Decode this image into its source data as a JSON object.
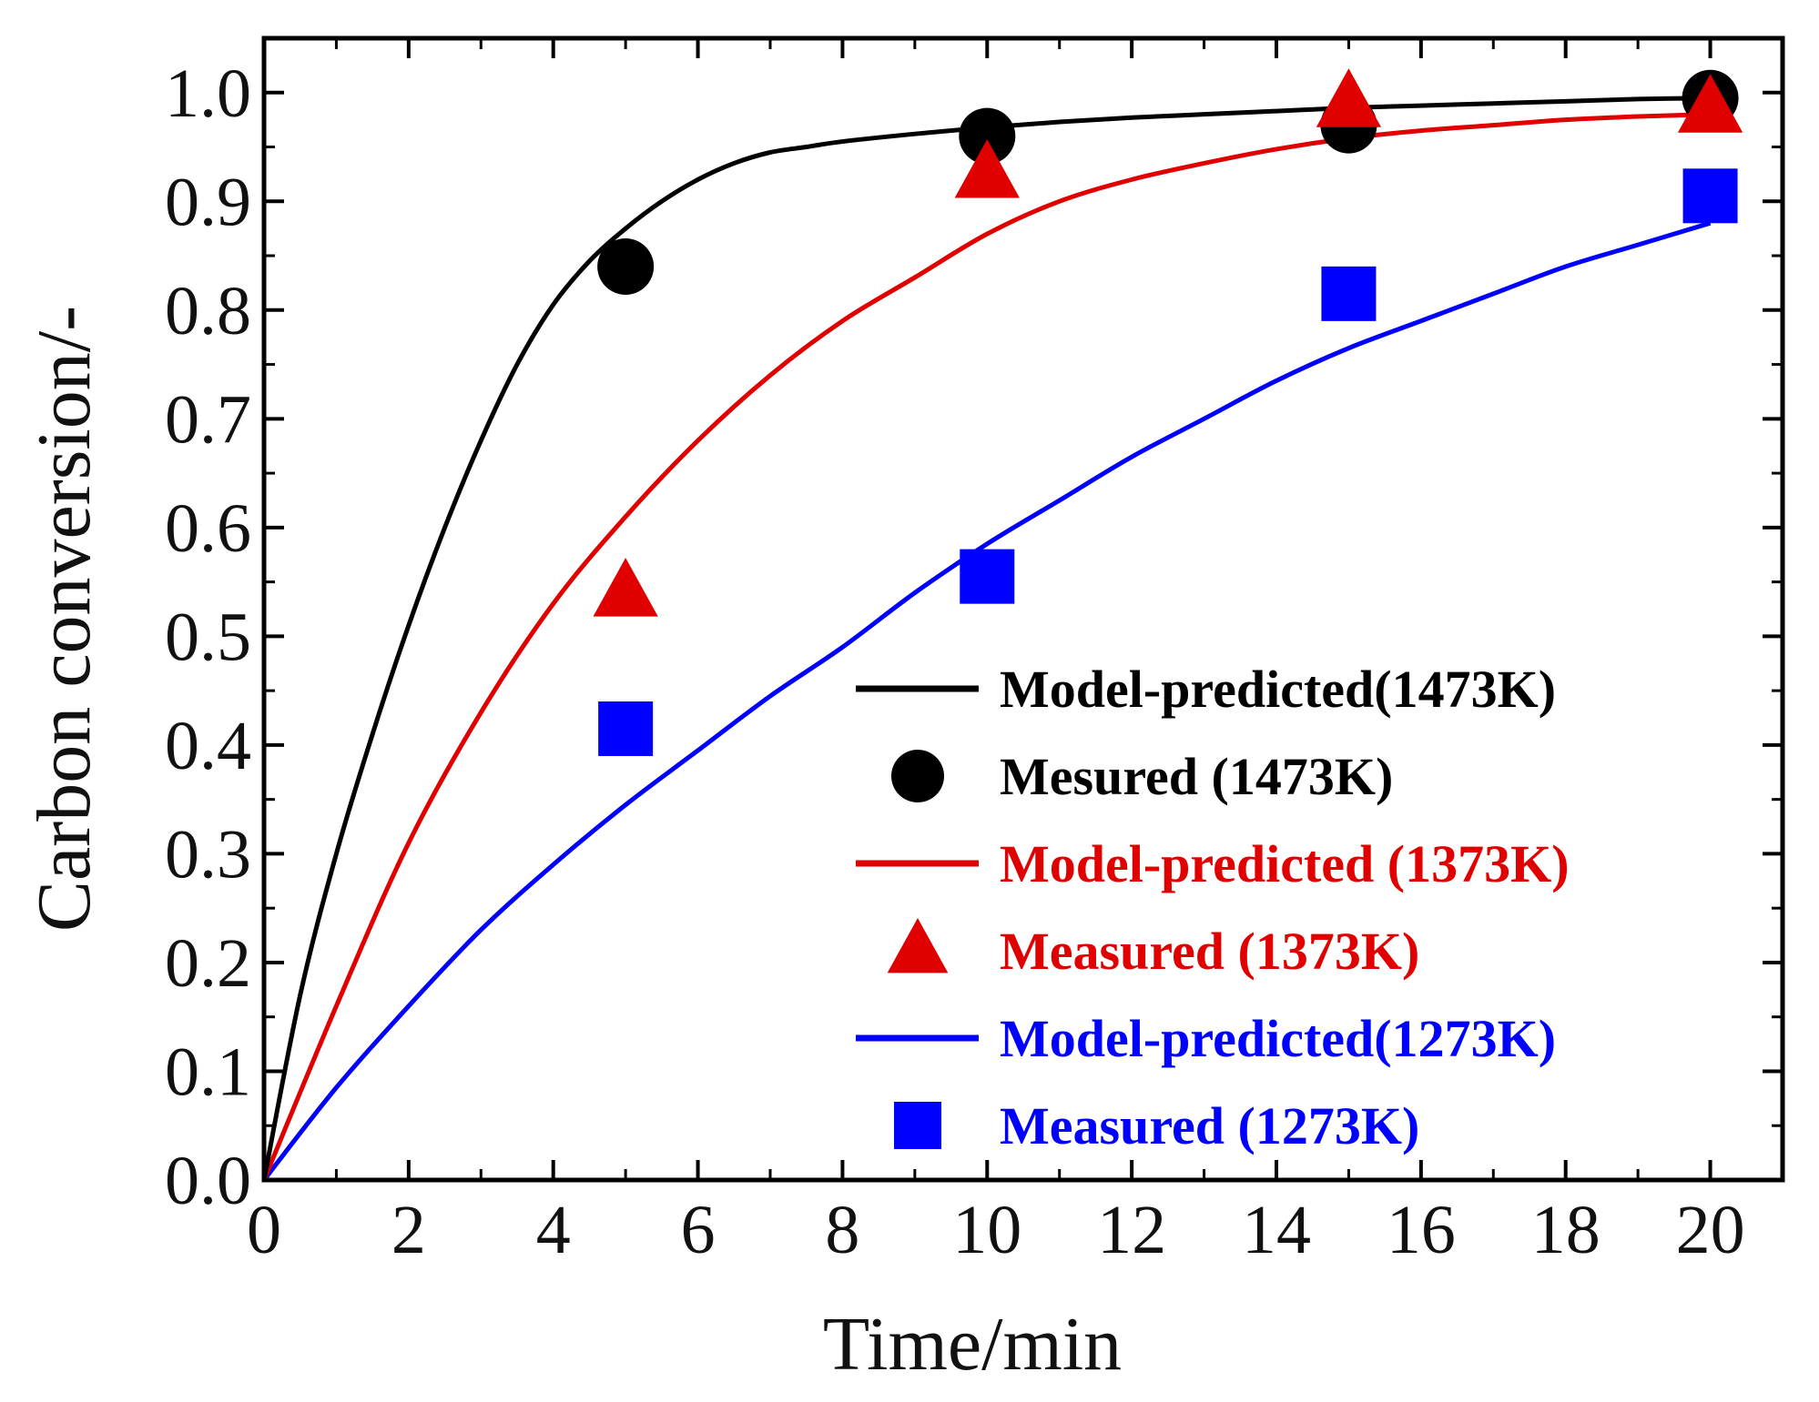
{
  "chart_data": {
    "type": "line",
    "title": "",
    "xlabel": "Time/min",
    "ylabel": "Carbon conversion/-",
    "xlim": [
      0,
      21
    ],
    "ylim": [
      0,
      1.05
    ],
    "x_ticks": [
      0,
      2,
      4,
      6,
      8,
      10,
      12,
      14,
      16,
      18,
      20
    ],
    "x_tick_labels": [
      "0",
      "2",
      "4",
      "6",
      "8",
      "10",
      "12",
      "14",
      "16",
      "18",
      "20"
    ],
    "y_ticks": [
      0,
      0.1,
      0.2,
      0.3,
      0.4,
      0.5,
      0.6,
      0.7,
      0.8,
      0.9,
      1.0
    ],
    "y_tick_labels": [
      "0.0",
      "0.1",
      "0.2",
      "0.3",
      "0.4",
      "0.5",
      "0.6",
      "0.7",
      "0.8",
      "0.9",
      "1.0"
    ],
    "legend_position": "bottom-right",
    "series": [
      {
        "name": "Model-predicted(1473K)",
        "kind": "line",
        "color": "#000000",
        "x": [
          0,
          0.5,
          1,
          1.5,
          2,
          2.5,
          3,
          3.5,
          4,
          4.5,
          5,
          5.5,
          6,
          6.5,
          7,
          7.5,
          8,
          9,
          10,
          11,
          12,
          13,
          14,
          15,
          16,
          17,
          18,
          19,
          20
        ],
        "values": [
          0.0,
          0.17,
          0.3,
          0.41,
          0.51,
          0.6,
          0.68,
          0.75,
          0.805,
          0.845,
          0.875,
          0.9,
          0.92,
          0.935,
          0.945,
          0.95,
          0.955,
          0.962,
          0.968,
          0.973,
          0.977,
          0.98,
          0.983,
          0.986,
          0.988,
          0.99,
          0.992,
          0.994,
          0.995
        ]
      },
      {
        "name": "Mesured (1473K)",
        "kind": "marker",
        "marker": "circle",
        "color": "#000000",
        "x": [
          5,
          10,
          15,
          20
        ],
        "values": [
          0.84,
          0.96,
          0.97,
          0.995
        ]
      },
      {
        "name": "Model-predicted (1373K)",
        "kind": "line",
        "color": "#e00000",
        "x": [
          0,
          1,
          2,
          3,
          4,
          5,
          6,
          7,
          8,
          9,
          10,
          11,
          12,
          13,
          14,
          15,
          16,
          17,
          18,
          19,
          20
        ],
        "values": [
          0.0,
          0.16,
          0.31,
          0.43,
          0.53,
          0.61,
          0.68,
          0.74,
          0.79,
          0.83,
          0.87,
          0.9,
          0.92,
          0.935,
          0.948,
          0.958,
          0.965,
          0.97,
          0.975,
          0.978,
          0.98
        ]
      },
      {
        "name": "Measured (1373K)",
        "kind": "marker",
        "marker": "triangle",
        "color": "#e00000",
        "x": [
          5,
          10,
          15,
          20
        ],
        "values": [
          0.54,
          0.925,
          0.99,
          0.985
        ]
      },
      {
        "name": "Model-predicted(1273K)",
        "kind": "line",
        "color": "#0000ff",
        "x": [
          0,
          1,
          2,
          3,
          4,
          5,
          6,
          7,
          8,
          9,
          10,
          11,
          12,
          13,
          14,
          15,
          16,
          17,
          18,
          19,
          20
        ],
        "values": [
          0.0,
          0.085,
          0.16,
          0.23,
          0.29,
          0.345,
          0.395,
          0.445,
          0.49,
          0.54,
          0.585,
          0.625,
          0.665,
          0.7,
          0.735,
          0.765,
          0.79,
          0.815,
          0.84,
          0.86,
          0.88
        ]
      },
      {
        "name": "Measured (1273K)",
        "kind": "marker",
        "marker": "square",
        "color": "#0000ff",
        "x": [
          5,
          10,
          15,
          20
        ],
        "values": [
          0.415,
          0.555,
          0.815,
          0.905
        ]
      }
    ]
  }
}
